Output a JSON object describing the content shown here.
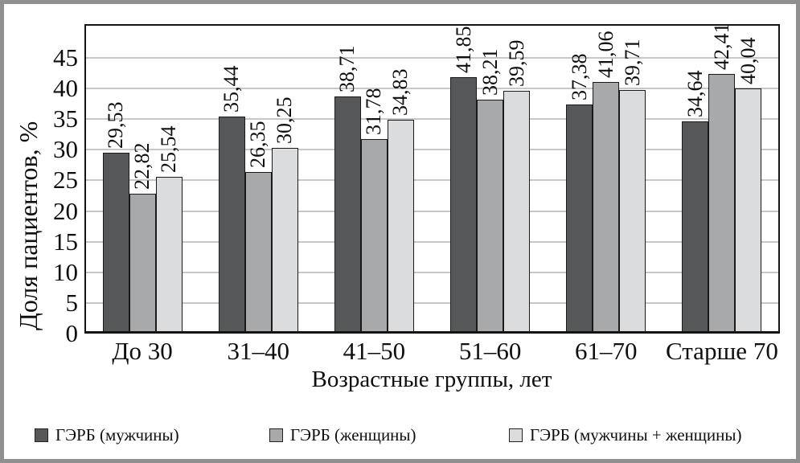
{
  "chart_data": {
    "type": "bar",
    "title": "",
    "categories": [
      "До 30",
      "31–40",
      "41–50",
      "51–60",
      "61–70",
      "Старше 70"
    ],
    "series": [
      {
        "name": "ГЭРБ (мужчины)",
        "color": "#57585a",
        "values": [
          29.53,
          35.44,
          38.71,
          41.85,
          37.38,
          34.64
        ],
        "value_labels": [
          "29,53",
          "35,44",
          "38,71",
          "41,85",
          "37,38",
          "34,64"
        ]
      },
      {
        "name": "ГЭРБ (женщины)",
        "color": "#a8a9ab",
        "values": [
          22.82,
          26.35,
          31.78,
          38.21,
          41.06,
          42.41
        ],
        "value_labels": [
          "22,82",
          "26,35",
          "31,78",
          "38,21",
          "41,06",
          "42,41"
        ]
      },
      {
        "name": "ГЭРБ (мужчины + женщины)",
        "color": "#dbdcde",
        "values": [
          25.54,
          30.25,
          34.83,
          39.59,
          39.71,
          40.04
        ],
        "value_labels": [
          "25,54",
          "30,25",
          "34,83",
          "39,59",
          "39,71",
          "40,04"
        ]
      }
    ],
    "xlabel": "Возрастные группы, лет",
    "ylabel": "Доля пациентов, %",
    "ylim": [
      0,
      50.5
    ],
    "yticks": [
      0,
      5,
      10,
      15,
      20,
      25,
      30,
      35,
      40,
      45
    ],
    "grid": true,
    "legend_position": "bottom",
    "colors": {
      "gridline": "#c6c7c8",
      "axis": "#141414",
      "page_border": "#909090"
    }
  }
}
